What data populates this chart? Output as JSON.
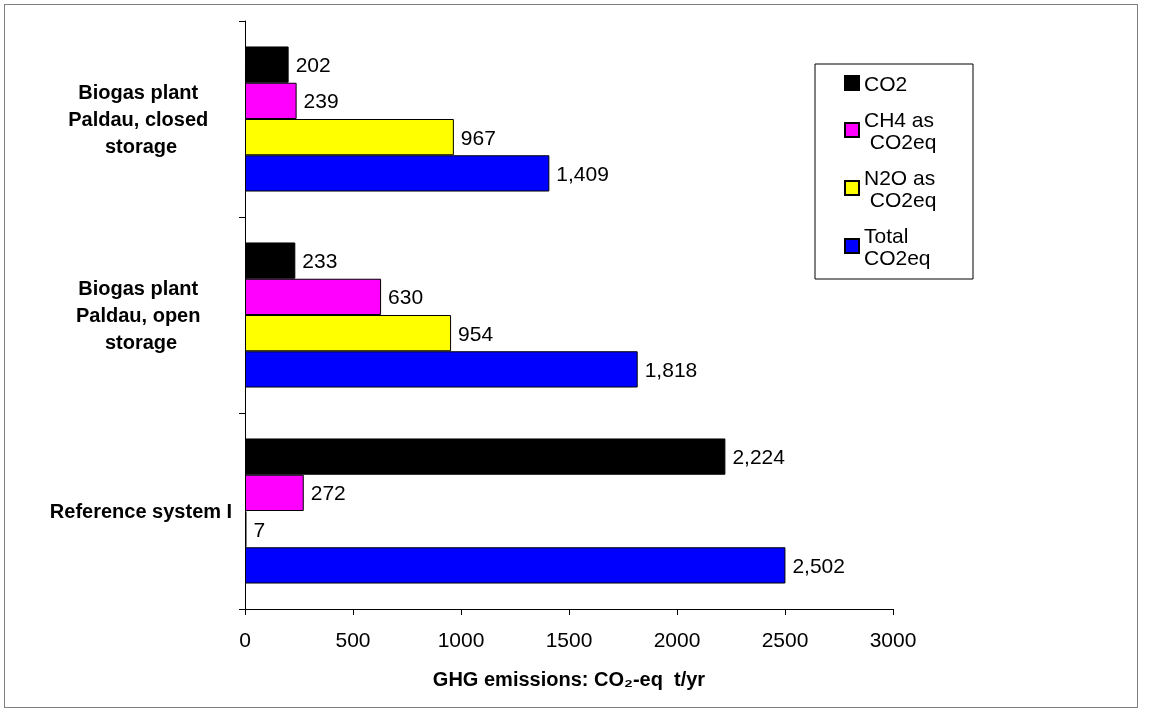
{
  "chart_data": {
    "type": "bar",
    "orientation": "horizontal",
    "categories": [
      "Biogas plant Paldau, closed storage",
      "Biogas plant Paldau, open storage",
      "Reference system I"
    ],
    "series": [
      {
        "name": "CO2",
        "color": "#000000",
        "values": [
          202,
          233,
          2224
        ],
        "value_labels": [
          "202",
          "233",
          "2,224"
        ]
      },
      {
        "name": "CH4 as CO2eq",
        "color": "#ff00ff",
        "values": [
          239,
          630,
          272
        ],
        "value_labels": [
          "239",
          "630",
          "272"
        ]
      },
      {
        "name": "N2O as CO2eq",
        "color": "#ffff00",
        "values": [
          967,
          954,
          7
        ],
        "value_labels": [
          "967",
          "954",
          "7"
        ]
      },
      {
        "name": "Total CO2eq",
        "color": "#0000ff",
        "values": [
          1409,
          1818,
          2502
        ],
        "value_labels": [
          "1,409",
          "1,818",
          "2,502"
        ]
      }
    ],
    "xlabel": "GHG emissions: CO₂-eq  t/yr",
    "xlim": [
      0,
      3000
    ],
    "xticks": [
      0,
      500,
      1000,
      1500,
      2000,
      2500,
      3000
    ],
    "grid": false,
    "legend": "top right"
  }
}
